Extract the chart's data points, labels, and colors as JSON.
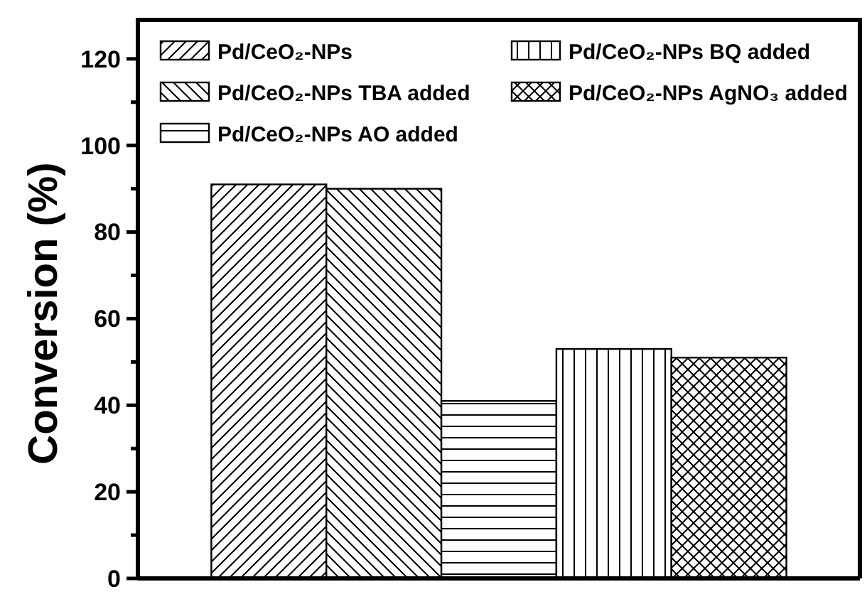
{
  "chart_data": {
    "type": "bar",
    "ylabel": "Conversion (%)",
    "categories": [
      null
    ],
    "series": [
      {
        "name": "Pd/CeO₂-NPs",
        "color": "#000000",
        "values": [
          91
        ]
      },
      {
        "name": "Pd/CeO₂-NPs TBA added",
        "color": "#000000",
        "values": [
          90
        ]
      },
      {
        "name": "Pd/CeO₂-NPs AO added",
        "color": "#000000",
        "values": [
          41
        ]
      },
      {
        "name": "Pd/CeO₂-NPs BQ added",
        "color": "#000000",
        "values": [
          53
        ]
      },
      {
        "name": "Pd/CeO₂-NPs AgNO₃ added",
        "color": "#000000",
        "values": [
          51
        ]
      }
    ],
    "ylim": [
      0,
      129
    ],
    "yticks": [
      0,
      {
        "value": 10,
        "label": null
      },
      20,
      {
        "value": 30,
        "label": null
      },
      40,
      {
        "value": 50,
        "label": null
      },
      60,
      {
        "value": 70,
        "label": null
      },
      80,
      {
        "value": 90,
        "label": null
      },
      100,
      {
        "value": 110,
        "label": null
      },
      120
    ],
    "tick_labels": "y",
    "grid": false,
    "legend": "top left"
  }
}
